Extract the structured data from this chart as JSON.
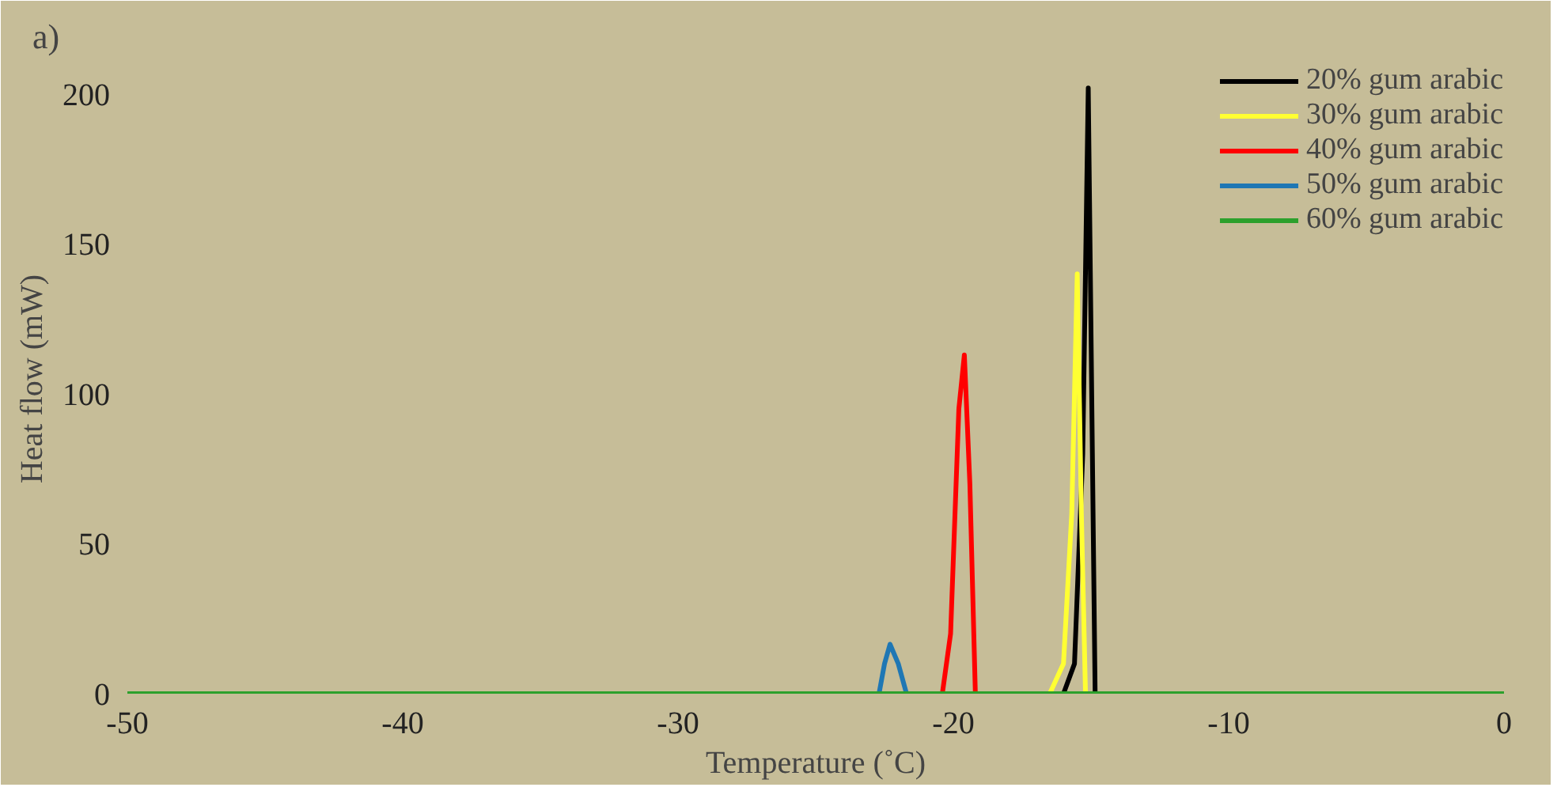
{
  "chart_data": {
    "type": "line",
    "xlabel": "Temperature (˚C)",
    "ylabel": "Heat flow (mW)",
    "annotations": [
      "a)"
    ],
    "xlim": [
      -50,
      0
    ],
    "ylim": [
      0,
      210
    ],
    "xticks": [
      -50,
      -40,
      -30,
      -20,
      -10,
      0
    ],
    "yticks": [
      0,
      50,
      100,
      150,
      200
    ],
    "grid": false,
    "legend": "top right",
    "marker": "none",
    "line_style": "solid",
    "series": [
      {
        "name": "20% gum arabic",
        "color": "#000000",
        "x": [
          -16.0,
          -15.6,
          -15.3,
          -15.1,
          -14.95,
          -14.85
        ],
        "values": [
          0,
          10,
          80,
          202,
          80,
          0
        ]
      },
      {
        "name": "30% gum arabic",
        "color": "#ffff33",
        "x": [
          -16.5,
          -16.0,
          -15.7,
          -15.5,
          -15.35,
          -15.2
        ],
        "values": [
          0,
          10,
          60,
          140,
          60,
          0
        ]
      },
      {
        "name": "40% gum arabic",
        "color": "#ff0000",
        "x": [
          -20.4,
          -20.1,
          -19.8,
          -19.6,
          -19.4,
          -19.2
        ],
        "values": [
          0,
          20,
          95,
          113,
          70,
          0
        ]
      },
      {
        "name": "50% gum arabic",
        "color": "#1f77b4",
        "x": [
          -22.7,
          -22.5,
          -22.3,
          -22.0,
          -21.7
        ],
        "values": [
          0,
          10,
          16.5,
          10,
          0
        ]
      },
      {
        "name": "60% gum arabic",
        "color": "#2ca02c",
        "x": [
          -50,
          0
        ],
        "values": [
          0,
          0
        ]
      }
    ]
  }
}
